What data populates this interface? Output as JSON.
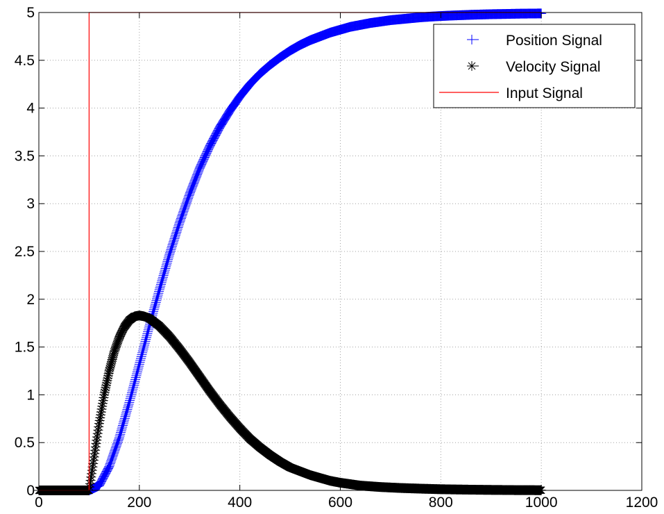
{
  "chart_data": {
    "type": "line",
    "title": "",
    "xlabel": "",
    "ylabel": "",
    "xlim": [
      0,
      1200
    ],
    "ylim": [
      0,
      5
    ],
    "grid": true,
    "legend_position": "top-right",
    "x_ticks": [
      0,
      200,
      400,
      600,
      800,
      1000,
      1200
    ],
    "y_ticks": [
      0,
      0.5,
      1,
      1.5,
      2,
      2.5,
      3,
      3.5,
      4,
      4.5,
      5
    ],
    "x_tick_labels": [
      "0",
      "200",
      "400",
      "600",
      "800",
      "1000",
      "1200"
    ],
    "y_tick_labels": [
      "0",
      "0.5",
      "1",
      "1.5",
      "2",
      "2.5",
      "3",
      "3.5",
      "4",
      "4.5",
      "5"
    ],
    "series": [
      {
        "name": "Position Signal",
        "color": "#0000ff",
        "marker": "plus",
        "x": [
          0,
          100,
          120,
          140,
          160,
          180,
          200,
          220,
          240,
          260,
          280,
          300,
          320,
          340,
          360,
          380,
          400,
          420,
          440,
          460,
          480,
          500,
          520,
          540,
          560,
          580,
          600,
          620,
          640,
          660,
          680,
          700,
          720,
          740,
          760,
          780,
          800,
          820,
          840,
          860,
          880,
          900,
          920,
          940,
          960,
          980,
          1000
        ],
        "y": [
          0,
          0,
          0.05,
          0.25,
          0.55,
          0.92,
          1.32,
          1.72,
          2.1,
          2.47,
          2.8,
          3.1,
          3.37,
          3.6,
          3.8,
          3.97,
          4.12,
          4.25,
          4.36,
          4.45,
          4.53,
          4.6,
          4.66,
          4.71,
          4.75,
          4.79,
          4.82,
          4.85,
          4.87,
          4.89,
          4.905,
          4.92,
          4.93,
          4.94,
          4.95,
          4.957,
          4.963,
          4.968,
          4.972,
          4.976,
          4.979,
          4.982,
          4.984,
          4.986,
          4.988,
          4.989,
          4.99
        ]
      },
      {
        "name": "Velocity Signal",
        "color": "#000000",
        "marker": "star",
        "x": [
          0,
          100,
          110,
          120,
          130,
          140,
          150,
          160,
          170,
          180,
          190,
          200,
          210,
          220,
          240,
          260,
          280,
          300,
          320,
          340,
          360,
          380,
          400,
          420,
          440,
          460,
          480,
          500,
          520,
          540,
          560,
          580,
          600,
          640,
          680,
          720,
          760,
          800,
          850,
          900,
          950,
          1000
        ],
        "y": [
          0,
          0,
          0.35,
          0.7,
          1.0,
          1.25,
          1.45,
          1.6,
          1.71,
          1.78,
          1.82,
          1.83,
          1.82,
          1.8,
          1.72,
          1.61,
          1.48,
          1.34,
          1.19,
          1.04,
          0.9,
          0.77,
          0.65,
          0.54,
          0.45,
          0.37,
          0.3,
          0.24,
          0.2,
          0.16,
          0.13,
          0.1,
          0.08,
          0.05,
          0.035,
          0.025,
          0.018,
          0.012,
          0.008,
          0.005,
          0.003,
          0.002
        ]
      },
      {
        "name": "Input Signal",
        "color": "#ff0000",
        "marker": "none",
        "x": [
          0,
          100,
          100,
          1000
        ],
        "y": [
          0,
          0,
          5,
          5
        ]
      }
    ]
  }
}
